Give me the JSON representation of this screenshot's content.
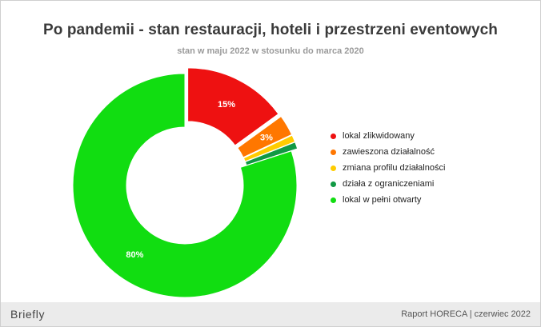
{
  "header": {
    "title": "Po pandemii - stan restauracji, hoteli i przestrzeni eventowych",
    "subtitle": "stan w maju 2022 w stosunku do marca 2020"
  },
  "footer": {
    "brand": "Briefly",
    "report": "Raport HORECA | czerwiec 2022"
  },
  "chart_data": {
    "type": "pie",
    "donut": true,
    "exploded_slices": [
      "lokal zlikwidowany",
      "zawieszona działalność",
      "zmiana profilu działalności",
      "działa z ograniczeniami"
    ],
    "legend_position": "right",
    "categories": [
      "lokal zlikwidowany",
      "zawieszona działalność",
      "zmiana profilu działalności",
      "działa z ograniczeniami",
      "lokal w pełni otwarty"
    ],
    "values": [
      15,
      3,
      1,
      1,
      80
    ],
    "data_labels": [
      "15%",
      "3%",
      "",
      "",
      "80%"
    ],
    "colors": [
      "#ee1111",
      "#ff7700",
      "#ffcc00",
      "#119944",
      "#11dd11"
    ]
  }
}
